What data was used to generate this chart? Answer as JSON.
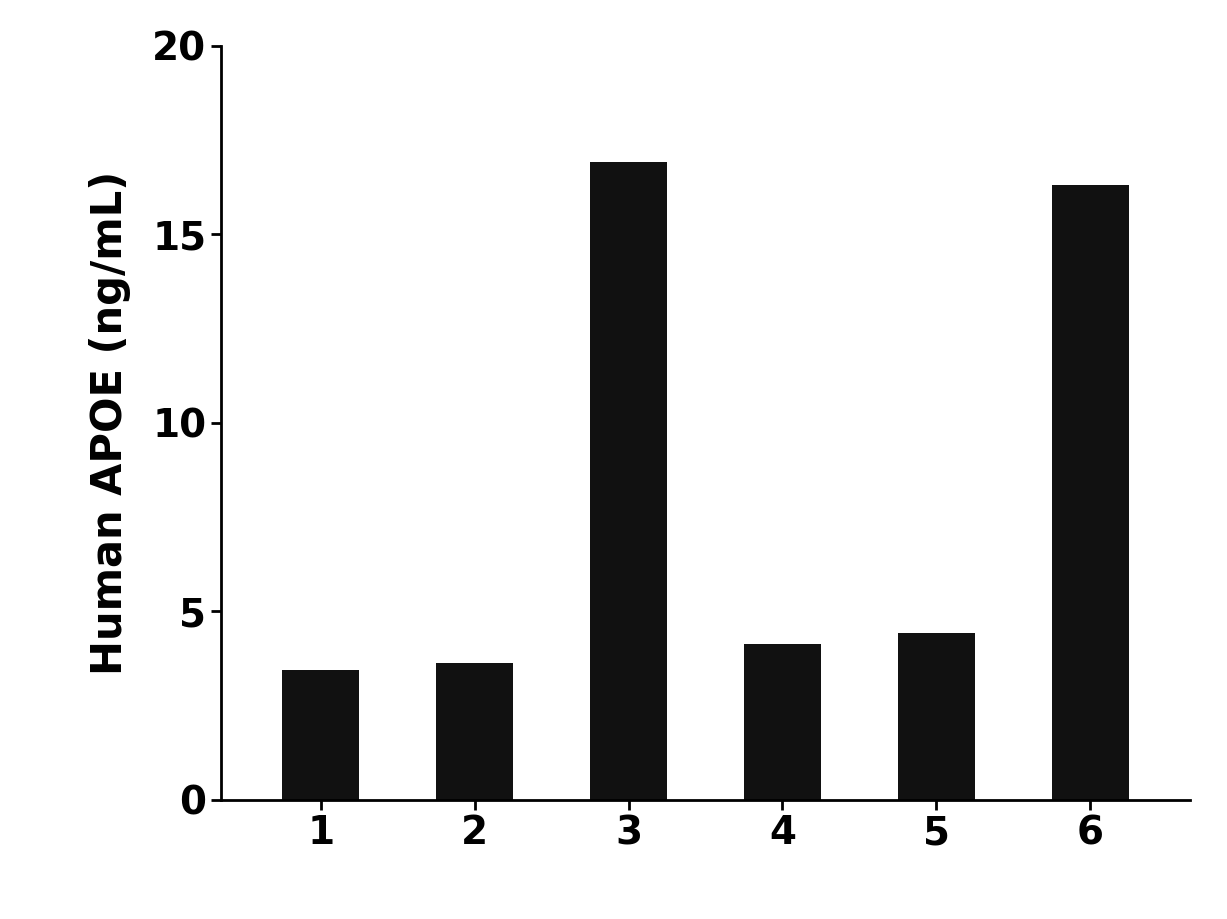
{
  "categories": [
    "1",
    "2",
    "3",
    "4",
    "5",
    "6"
  ],
  "values": [
    3.43,
    3.62,
    16.91,
    4.12,
    4.42,
    16.3
  ],
  "bar_color": "#111111",
  "ylabel": "Human APOE (ng/mL)",
  "ylim": [
    0,
    20
  ],
  "yticks": [
    0,
    5,
    10,
    15,
    20
  ],
  "background_color": "#ffffff",
  "bar_width": 0.5,
  "ylabel_fontsize": 30,
  "tick_fontsize": 28,
  "spine_linewidth": 2.0
}
